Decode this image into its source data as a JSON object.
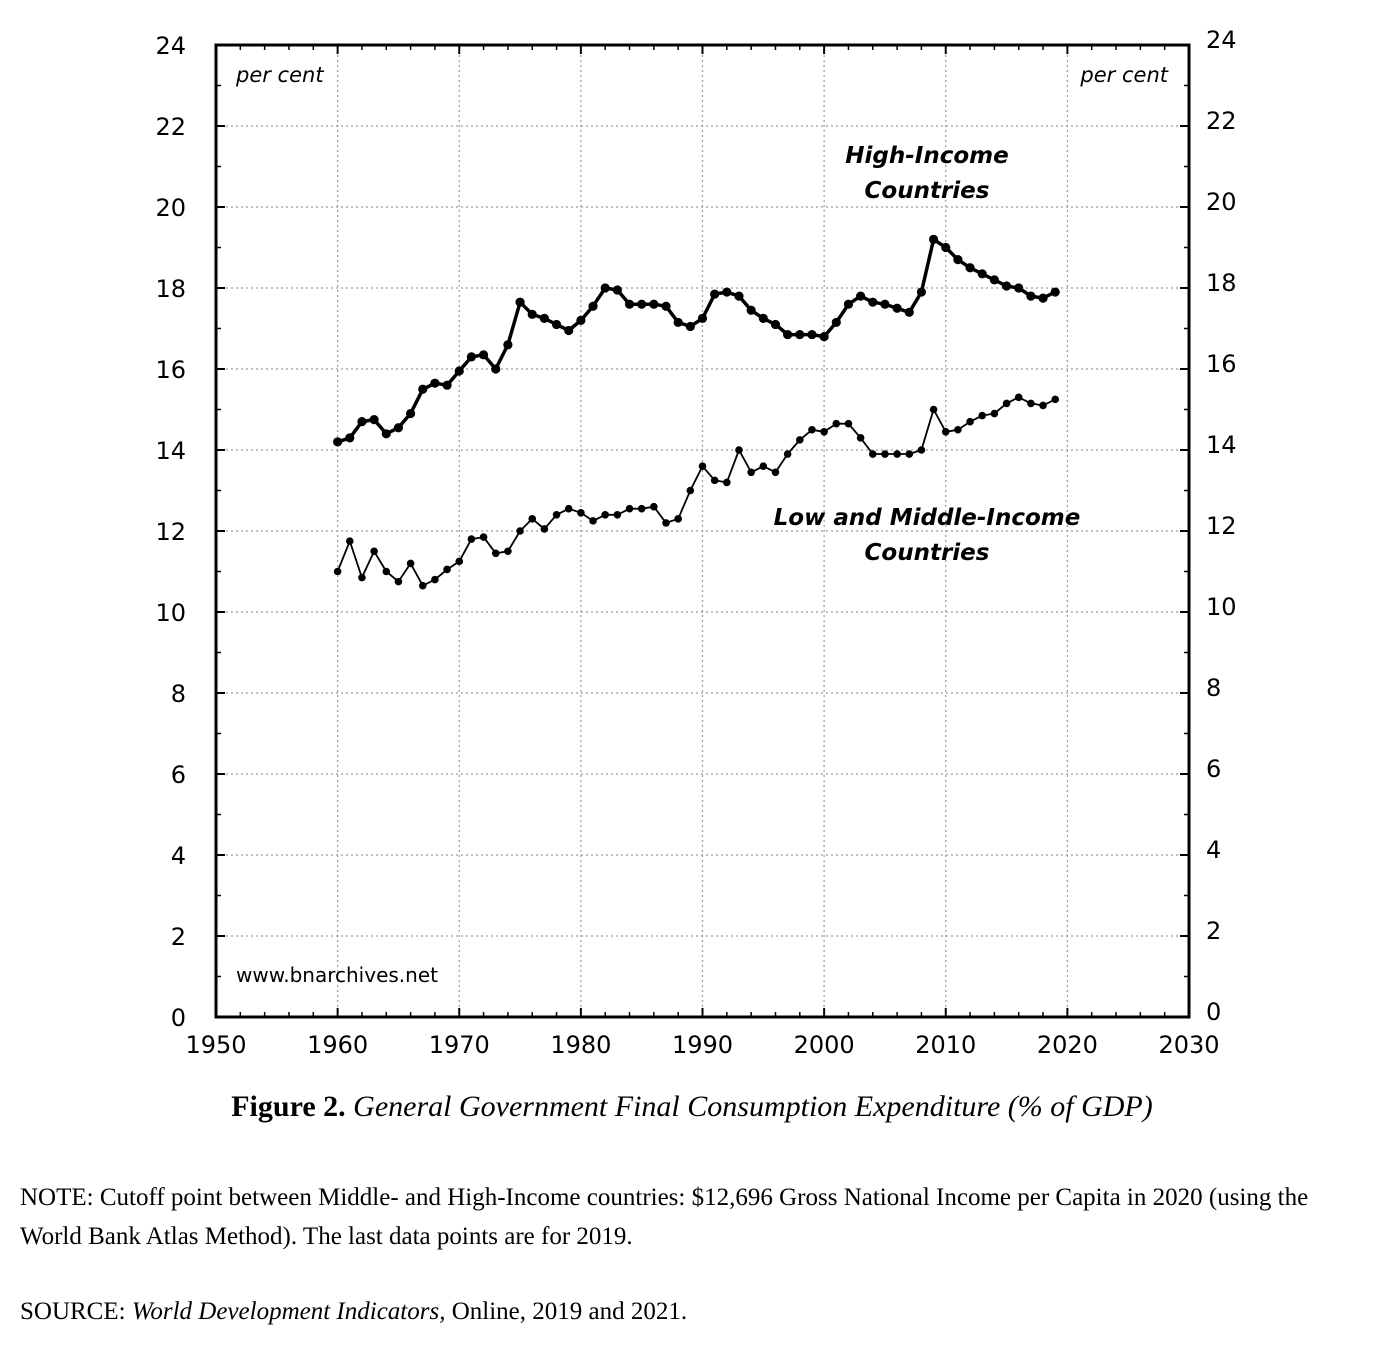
{
  "chart_data": {
    "type": "line",
    "x_axis": {
      "ticks": [
        "1950",
        "1960",
        "1970",
        "1980",
        "1990",
        "2000",
        "2010",
        "2020",
        "2030"
      ],
      "xlim": [
        1950,
        2030
      ]
    },
    "y_axis_left": {
      "ticks": [
        "0",
        "2",
        "4",
        "6",
        "8",
        "10",
        "12",
        "14",
        "16",
        "18",
        "20",
        "22",
        "24"
      ],
      "ylim": [
        0,
        24
      ],
      "unit_label": "per cent"
    },
    "y_axis_right": {
      "ticks": [
        "0",
        "2",
        "4",
        "6",
        "8",
        "10",
        "12",
        "14",
        "16",
        "18",
        "20",
        "22",
        "24"
      ],
      "ylim": [
        0,
        24
      ],
      "unit_label": "per cent"
    },
    "grid": true,
    "series": [
      {
        "name_lines": [
          "High-Income",
          "Countries"
        ],
        "style": "thick",
        "color": "#000000",
        "x": [
          1960,
          1961,
          1962,
          1963,
          1964,
          1965,
          1966,
          1967,
          1968,
          1969,
          1970,
          1971,
          1972,
          1973,
          1974,
          1975,
          1976,
          1977,
          1978,
          1979,
          1980,
          1981,
          1982,
          1983,
          1984,
          1985,
          1986,
          1987,
          1988,
          1989,
          1990,
          1991,
          1992,
          1993,
          1994,
          1995,
          1996,
          1997,
          1998,
          1999,
          2000,
          2001,
          2002,
          2003,
          2004,
          2005,
          2006,
          2007,
          2008,
          2009,
          2010,
          2011,
          2012,
          2013,
          2014,
          2015,
          2016,
          2017,
          2018,
          2019
        ],
        "y": [
          14.2,
          14.3,
          14.7,
          14.75,
          14.4,
          14.55,
          14.9,
          15.5,
          15.65,
          15.6,
          15.95,
          16.3,
          16.35,
          16.0,
          16.6,
          17.65,
          17.35,
          17.25,
          17.1,
          16.95,
          17.2,
          17.55,
          18.0,
          17.95,
          17.6,
          17.6,
          17.6,
          17.55,
          17.15,
          17.05,
          17.25,
          17.85,
          17.9,
          17.8,
          17.45,
          17.25,
          17.1,
          16.85,
          16.85,
          16.85,
          16.8,
          17.15,
          17.6,
          17.8,
          17.65,
          17.6,
          17.5,
          17.4,
          17.9,
          19.2,
          19.0,
          18.7,
          18.5,
          18.35,
          18.2,
          18.05,
          18.0,
          17.8,
          17.75,
          17.9
        ]
      },
      {
        "name_lines": [
          "Low and Middle-Income",
          "Countries"
        ],
        "style": "thin",
        "color": "#000000",
        "x": [
          1960,
          1961,
          1962,
          1963,
          1964,
          1965,
          1966,
          1967,
          1968,
          1969,
          1970,
          1971,
          1972,
          1973,
          1974,
          1975,
          1976,
          1977,
          1978,
          1979,
          1980,
          1981,
          1982,
          1983,
          1984,
          1985,
          1986,
          1987,
          1988,
          1989,
          1990,
          1991,
          1992,
          1993,
          1994,
          1995,
          1996,
          1997,
          1998,
          1999,
          2000,
          2001,
          2002,
          2003,
          2004,
          2005,
          2006,
          2007,
          2008,
          2009,
          2010,
          2011,
          2012,
          2013,
          2014,
          2015,
          2016,
          2017,
          2018,
          2019
        ],
        "y": [
          11.0,
          11.75,
          10.85,
          11.5,
          11.0,
          10.75,
          11.2,
          10.65,
          10.8,
          11.05,
          11.25,
          11.8,
          11.85,
          11.45,
          11.5,
          12.0,
          12.3,
          12.05,
          12.4,
          12.55,
          12.45,
          12.25,
          12.4,
          12.4,
          12.55,
          12.55,
          12.6,
          12.2,
          12.3,
          13.0,
          13.6,
          13.25,
          13.2,
          14.0,
          13.45,
          13.6,
          13.45,
          13.9,
          14.25,
          14.5,
          14.45,
          14.65,
          14.65,
          14.3,
          13.9,
          13.9,
          13.9,
          13.9,
          14.0,
          15.0,
          14.45,
          14.5,
          14.7,
          14.85,
          14.9,
          15.15,
          15.3,
          15.15,
          15.1,
          15.25
        ]
      }
    ]
  },
  "watermark": "www.bnarchives.net",
  "caption": {
    "number": "Figure 2.",
    "title": "General Government Final Consumption Expenditure (% of GDP)"
  },
  "note": "NOTE: Cutoff point between Middle- and High-Income countries: $12,696 Gross National Income per Capita in 2020 (using the World Bank Atlas Method). The last data points are for 2019.",
  "source": {
    "prefix": "SOURCE:",
    "title": "World Development Indicators,",
    "rest": "Online, 2019 and 2021."
  }
}
